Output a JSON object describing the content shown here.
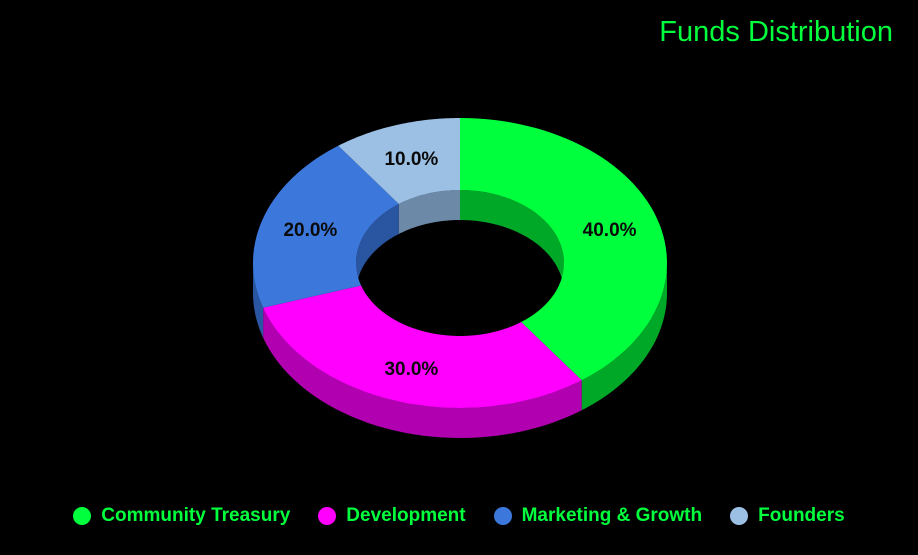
{
  "chart_data": {
    "type": "pie",
    "title": "Funds Distribution",
    "categories": [
      "Community Treasury",
      "Development",
      "Marketing & Growth",
      "Founders"
    ],
    "values": [
      40.0,
      30.0,
      20.0,
      10.0
    ],
    "labels": [
      "40.0%",
      "30.0%",
      "20.0%",
      "10.0%"
    ],
    "colors": [
      "#00ff3c",
      "#ff00ff",
      "#3c78dc",
      "#9cc0e4"
    ],
    "side_colors": [
      "#00a828",
      "#b000b0",
      "#2a55a0",
      "#6c8aa8"
    ],
    "legend_position": "bottom",
    "style": "3d-donut"
  }
}
